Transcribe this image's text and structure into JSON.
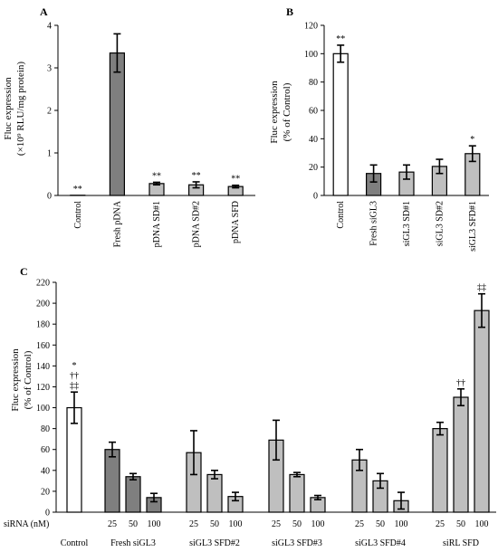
{
  "colors": {
    "white": "#ffffff",
    "dark": "#7f7f7f",
    "light": "#bfbfbf",
    "stroke": "#000000"
  },
  "chart_data": [
    {
      "panel": "A",
      "type": "bar",
      "ylabel_lines": [
        "Fluc expression",
        "(×10⁹ RLU/mg protein)"
      ],
      "ylim": [
        0,
        4
      ],
      "yticks": [
        "0",
        "1",
        "2",
        "3",
        "4"
      ],
      "categories": [
        "Control",
        "Fresh pDNA",
        "pDNA SD#1",
        "pDNA SD#2",
        "pDNA SFD"
      ],
      "values": [
        0.005,
        3.35,
        0.28,
        0.25,
        0.21
      ],
      "errors": [
        0.0,
        0.45,
        0.03,
        0.07,
        0.03
      ],
      "fills": [
        "white",
        "dark",
        "light",
        "light",
        "light"
      ],
      "annotations": [
        "**",
        "",
        "**",
        "**",
        "**"
      ]
    },
    {
      "panel": "B",
      "type": "bar",
      "ylabel_lines": [
        "Fluc expression",
        "(% of Control)"
      ],
      "ylim": [
        0,
        120
      ],
      "yticks": [
        "0",
        "20",
        "40",
        "60",
        "80",
        "100",
        "120"
      ],
      "categories": [
        "Control",
        "Fresh siGL3",
        "siGL3 SD#1",
        "siGL3 SD#2",
        "siGL3 SFD#1"
      ],
      "values": [
        100,
        15.5,
        16.5,
        20.5,
        29.5
      ],
      "errors": [
        6,
        6,
        5,
        5,
        5.5
      ],
      "fills": [
        "white",
        "dark",
        "light",
        "light",
        "light"
      ],
      "annotations": [
        "**",
        "",
        "",
        "",
        "*"
      ]
    },
    {
      "panel": "C",
      "type": "bar",
      "ylabel_lines": [
        "Fluc expression",
        "(% of Control)"
      ],
      "ylim": [
        0,
        220
      ],
      "yticks": [
        "0",
        "20",
        "40",
        "60",
        "80",
        "100",
        "120",
        "140",
        "160",
        "180",
        "200",
        "220"
      ],
      "sirna_label": "siRNA (nM)",
      "groups": [
        {
          "name": "Control",
          "doses": [
            ""
          ],
          "values": [
            100
          ],
          "errors": [
            15
          ],
          "fills": [
            "white"
          ],
          "annotations": [
            [
              "*",
              "††",
              "‡‡"
            ]
          ]
        },
        {
          "name": "Fresh siGL3",
          "doses": [
            "25",
            "50",
            "100"
          ],
          "values": [
            60,
            34,
            14
          ],
          "errors": [
            7,
            3,
            4
          ],
          "fills": [
            "dark",
            "dark",
            "dark"
          ],
          "annotations": [
            [],
            [],
            []
          ]
        },
        {
          "name": "siGL3 SFD#2",
          "doses": [
            "25",
            "50",
            "100"
          ],
          "values": [
            57,
            36,
            15
          ],
          "errors": [
            21,
            4,
            4
          ],
          "fills": [
            "light",
            "light",
            "light"
          ],
          "annotations": [
            [],
            [],
            []
          ]
        },
        {
          "name": "siGL3 SFD#3",
          "doses": [
            "25",
            "50",
            "100"
          ],
          "values": [
            69,
            36,
            14
          ],
          "errors": [
            19,
            2,
            2
          ],
          "fills": [
            "light",
            "light",
            "light"
          ],
          "annotations": [
            [],
            [],
            []
          ]
        },
        {
          "name": "siGL3 SFD#4",
          "doses": [
            "25",
            "50",
            "100"
          ],
          "values": [
            50,
            30,
            11
          ],
          "errors": [
            10,
            7,
            8
          ],
          "fills": [
            "light",
            "light",
            "light"
          ],
          "annotations": [
            [],
            [],
            []
          ]
        },
        {
          "name": "siRL SFD",
          "doses": [
            "25",
            "50",
            "100"
          ],
          "values": [
            80,
            110,
            193
          ],
          "errors": [
            6,
            8,
            16
          ],
          "fills": [
            "light",
            "light",
            "light"
          ],
          "annotations": [
            [],
            [
              "††"
            ],
            [
              "‡‡"
            ]
          ]
        }
      ]
    }
  ]
}
